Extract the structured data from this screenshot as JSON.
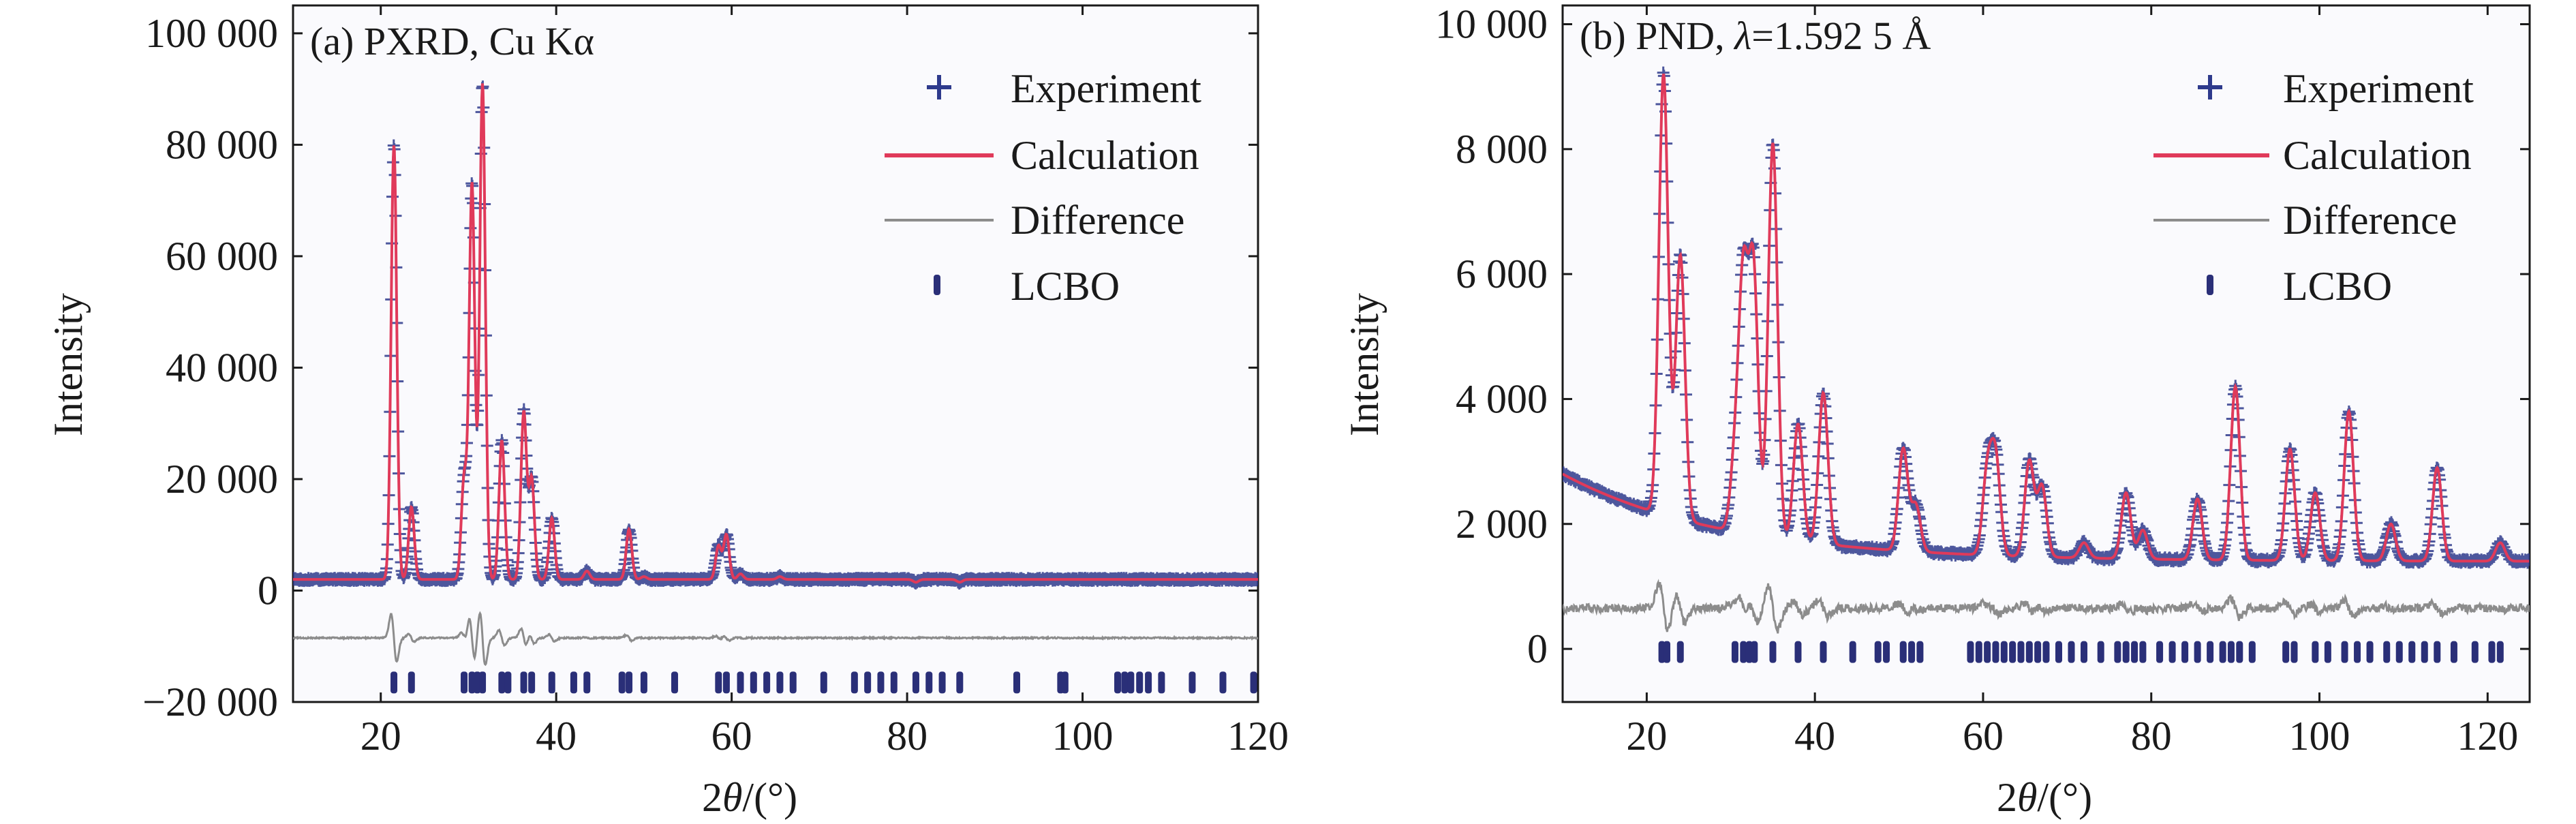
{
  "colors": {
    "experiment": "#2e3a8c",
    "calculation": "#e03a5a",
    "difference": "#8c8c8c",
    "reflection": "#2a2f78",
    "axis": "#1a1a1a",
    "background": "#fafafd"
  },
  "chart_data": [
    {
      "type": "line",
      "panel": "a",
      "title": "(a) PXRD, Cu Kα",
      "xlabel": "2θ/(°)",
      "ylabel": "Intensity",
      "xlim": [
        10,
        120
      ],
      "ylim": [
        -20000,
        105000
      ],
      "xticks": [
        20,
        40,
        60,
        80,
        100,
        120
      ],
      "xtick_labels": [
        "20",
        "40",
        "60",
        "80",
        "100",
        "120"
      ],
      "yticks": [
        -20000,
        0,
        20000,
        40000,
        60000,
        80000,
        100000
      ],
      "ytick_labels": [
        "−20 000",
        "0",
        "20 000",
        "40 000",
        "60 000",
        "80 000",
        "100 000"
      ],
      "background_level": 2000,
      "difference_offset": -8500,
      "reflection_marker_y": -16500,
      "legend": [
        {
          "name": "Experiment",
          "marker": "plus"
        },
        {
          "name": "Calculation",
          "marker": "line"
        },
        {
          "name": "Difference",
          "marker": "gray-line"
        },
        {
          "name": "LCBO",
          "marker": "tick"
        }
      ],
      "peaks": [
        {
          "x": 21.5,
          "y": 80000
        },
        {
          "x": 23.5,
          "y": 15000
        },
        {
          "x": 29.5,
          "y": 20000
        },
        {
          "x": 30.4,
          "y": 73000
        },
        {
          "x": 31.6,
          "y": 91000
        },
        {
          "x": 33.8,
          "y": 27000
        },
        {
          "x": 36.3,
          "y": 32000
        },
        {
          "x": 37.2,
          "y": 20000
        },
        {
          "x": 39.5,
          "y": 13000
        },
        {
          "x": 43.5,
          "y": 3500
        },
        {
          "x": 48.3,
          "y": 11000
        },
        {
          "x": 50.0,
          "y": 2500
        },
        {
          "x": 58.5,
          "y": 8000
        },
        {
          "x": 59.4,
          "y": 10000
        },
        {
          "x": 61.0,
          "y": 3000
        },
        {
          "x": 65.5,
          "y": 2500
        },
        {
          "x": 74.0,
          "y": 2000
        },
        {
          "x": 81.0,
          "y": 1500
        },
        {
          "x": 86.0,
          "y": 1500
        }
      ],
      "reflections": [
        21.5,
        23.5,
        29.5,
        30.4,
        31.0,
        31.6,
        33.8,
        34.5,
        36.3,
        37.2,
        39.5,
        42.0,
        43.5,
        47.5,
        48.3,
        50.0,
        53.5,
        58.5,
        59.4,
        61.0,
        62.5,
        64.0,
        65.5,
        67.0,
        70.5,
        74.0,
        75.5,
        77.0,
        78.5,
        81.0,
        82.5,
        84.0,
        86.0,
        92.5,
        97.5,
        98.0,
        104.0,
        104.8,
        105.5,
        106.5,
        107.5,
        109.0,
        112.5,
        116.0,
        119.5
      ]
    },
    {
      "type": "line",
      "panel": "b",
      "title": "(b) PND, λ=1.592 5 Å",
      "xlabel": "2θ/(°)",
      "ylabel": "Intensity",
      "xlim": [
        10,
        125
      ],
      "ylim": [
        -850,
        10300
      ],
      "xticks": [
        20,
        40,
        60,
        80,
        100,
        120
      ],
      "xtick_labels": [
        "20",
        "40",
        "60",
        "80",
        "100",
        "120"
      ],
      "yticks": [
        0,
        2000,
        4000,
        6000,
        8000,
        10000
      ],
      "ytick_labels": [
        "0",
        "2 000",
        "4 000",
        "6 000",
        "8 000",
        "10 000"
      ],
      "background_start": 2800,
      "background_end": 1400,
      "difference_offset": 650,
      "reflection_marker_y": -50,
      "legend": [
        {
          "name": "Experiment",
          "marker": "plus"
        },
        {
          "name": "Calculation",
          "marker": "line"
        },
        {
          "name": "Difference",
          "marker": "gray-line"
        },
        {
          "name": "LCBO",
          "marker": "tick"
        }
      ],
      "peaks": [
        {
          "x": 22.0,
          "y": 9200
        },
        {
          "x": 24.0,
          "y": 6300
        },
        {
          "x": 30.5,
          "y": 3000
        },
        {
          "x": 31.5,
          "y": 5800
        },
        {
          "x": 32.7,
          "y": 6000
        },
        {
          "x": 35.0,
          "y": 8100
        },
        {
          "x": 38.0,
          "y": 3600
        },
        {
          "x": 41.0,
          "y": 4100
        },
        {
          "x": 50.5,
          "y": 3200
        },
        {
          "x": 52.0,
          "y": 2300
        },
        {
          "x": 60.5,
          "y": 2800
        },
        {
          "x": 61.5,
          "y": 3000
        },
        {
          "x": 65.5,
          "y": 3000
        },
        {
          "x": 67.0,
          "y": 2600
        },
        {
          "x": 72.0,
          "y": 1700
        },
        {
          "x": 77.0,
          "y": 2500
        },
        {
          "x": 79.0,
          "y": 1900
        },
        {
          "x": 85.5,
          "y": 2400
        },
        {
          "x": 90.0,
          "y": 4200
        },
        {
          "x": 96.5,
          "y": 3200
        },
        {
          "x": 99.5,
          "y": 2500
        },
        {
          "x": 103.5,
          "y": 3800
        },
        {
          "x": 108.5,
          "y": 2000
        },
        {
          "x": 114.0,
          "y": 2900
        },
        {
          "x": 121.5,
          "y": 1700
        }
      ],
      "reflections": [
        21.8,
        22.4,
        24.0,
        30.5,
        31.5,
        32.2,
        32.8,
        35.0,
        38.0,
        41.0,
        44.5,
        47.5,
        48.5,
        50.5,
        51.5,
        52.5,
        58.5,
        59.5,
        60.5,
        61.5,
        62.5,
        63.5,
        64.5,
        65.5,
        66.5,
        67.5,
        69.0,
        70.5,
        72.0,
        74.0,
        76.0,
        77.0,
        78.0,
        79.0,
        81.0,
        82.5,
        84.0,
        85.5,
        87.0,
        88.5,
        89.5,
        90.5,
        92.0,
        96.0,
        97.0,
        99.5,
        101.0,
        103.0,
        104.5,
        106.0,
        108.0,
        109.5,
        111.0,
        112.5,
        114.0,
        116.0,
        118.5,
        120.5,
        121.5
      ]
    }
  ]
}
